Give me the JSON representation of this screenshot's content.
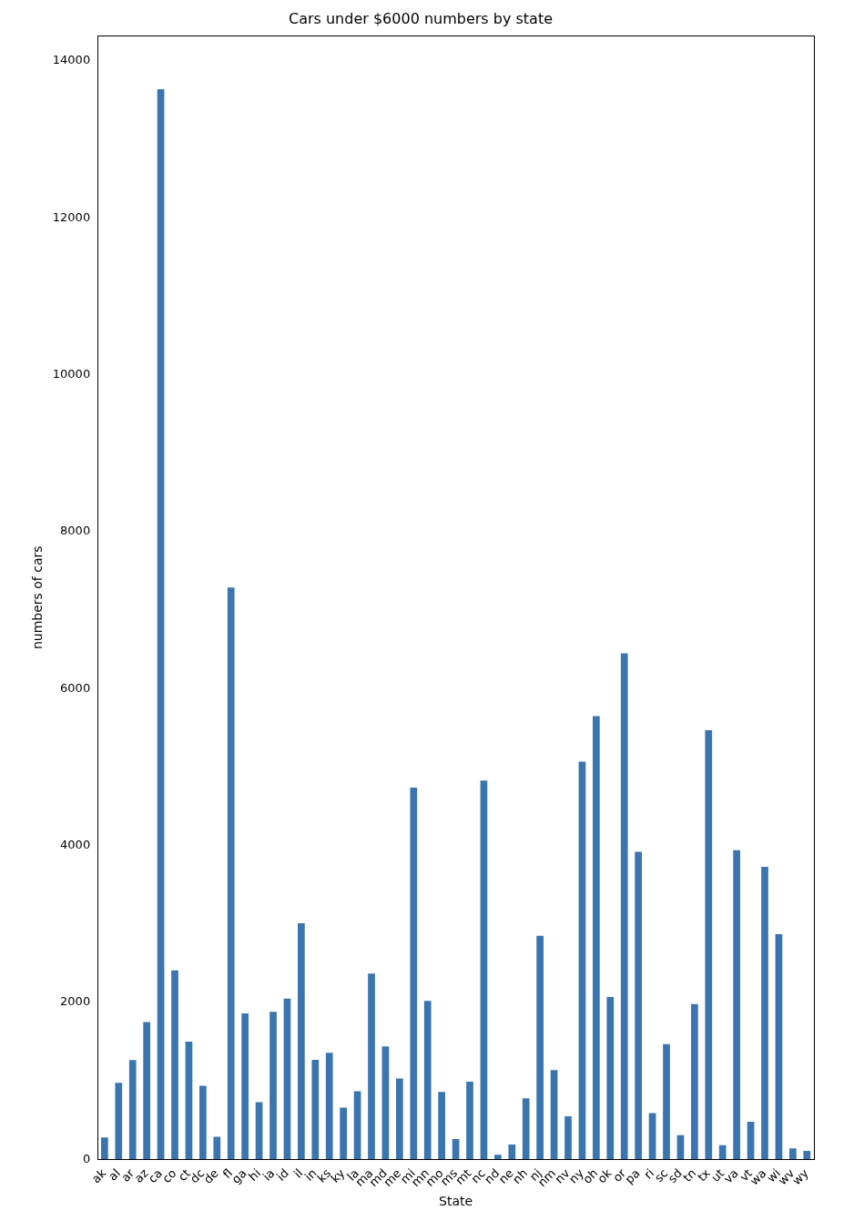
{
  "chart_data": {
    "type": "bar",
    "title": "Cars under $6000 numbers by state",
    "x_label": "State",
    "y_label": "numbers of cars",
    "categories": [
      "ak",
      "al",
      "ar",
      "az",
      "ca",
      "co",
      "ct",
      "dc",
      "de",
      "fl",
      "ga",
      "hi",
      "ia",
      "id",
      "il",
      "in",
      "ks",
      "ky",
      "la",
      "ma",
      "md",
      "me",
      "mi",
      "mn",
      "mo",
      "ms",
      "mt",
      "nc",
      "nd",
      "ne",
      "nh",
      "nj",
      "nm",
      "nv",
      "ny",
      "oh",
      "ok",
      "or",
      "pa",
      "ri",
      "sc",
      "sd",
      "tn",
      "tx",
      "ut",
      "va",
      "vt",
      "wa",
      "wi",
      "wv",
      "wy"
    ],
    "values": [
      280,
      975,
      1265,
      1750,
      13640,
      2410,
      1500,
      940,
      290,
      7290,
      1860,
      730,
      1880,
      2050,
      3010,
      1270,
      1360,
      660,
      870,
      2370,
      1440,
      1030,
      4740,
      2020,
      860,
      260,
      990,
      4830,
      60,
      190,
      780,
      2850,
      1140,
      550,
      5070,
      5650,
      2070,
      6450,
      3920,
      590,
      1470,
      310,
      1980,
      5470,
      180,
      3940,
      480,
      3730,
      2870,
      140,
      110
    ],
    "color": "#3b75af",
    "ylim": [
      0,
      14322
    ],
    "yticks": [
      0,
      2000,
      4000,
      6000,
      8000,
      10000,
      12000,
      14000
    ],
    "grid": false
  }
}
